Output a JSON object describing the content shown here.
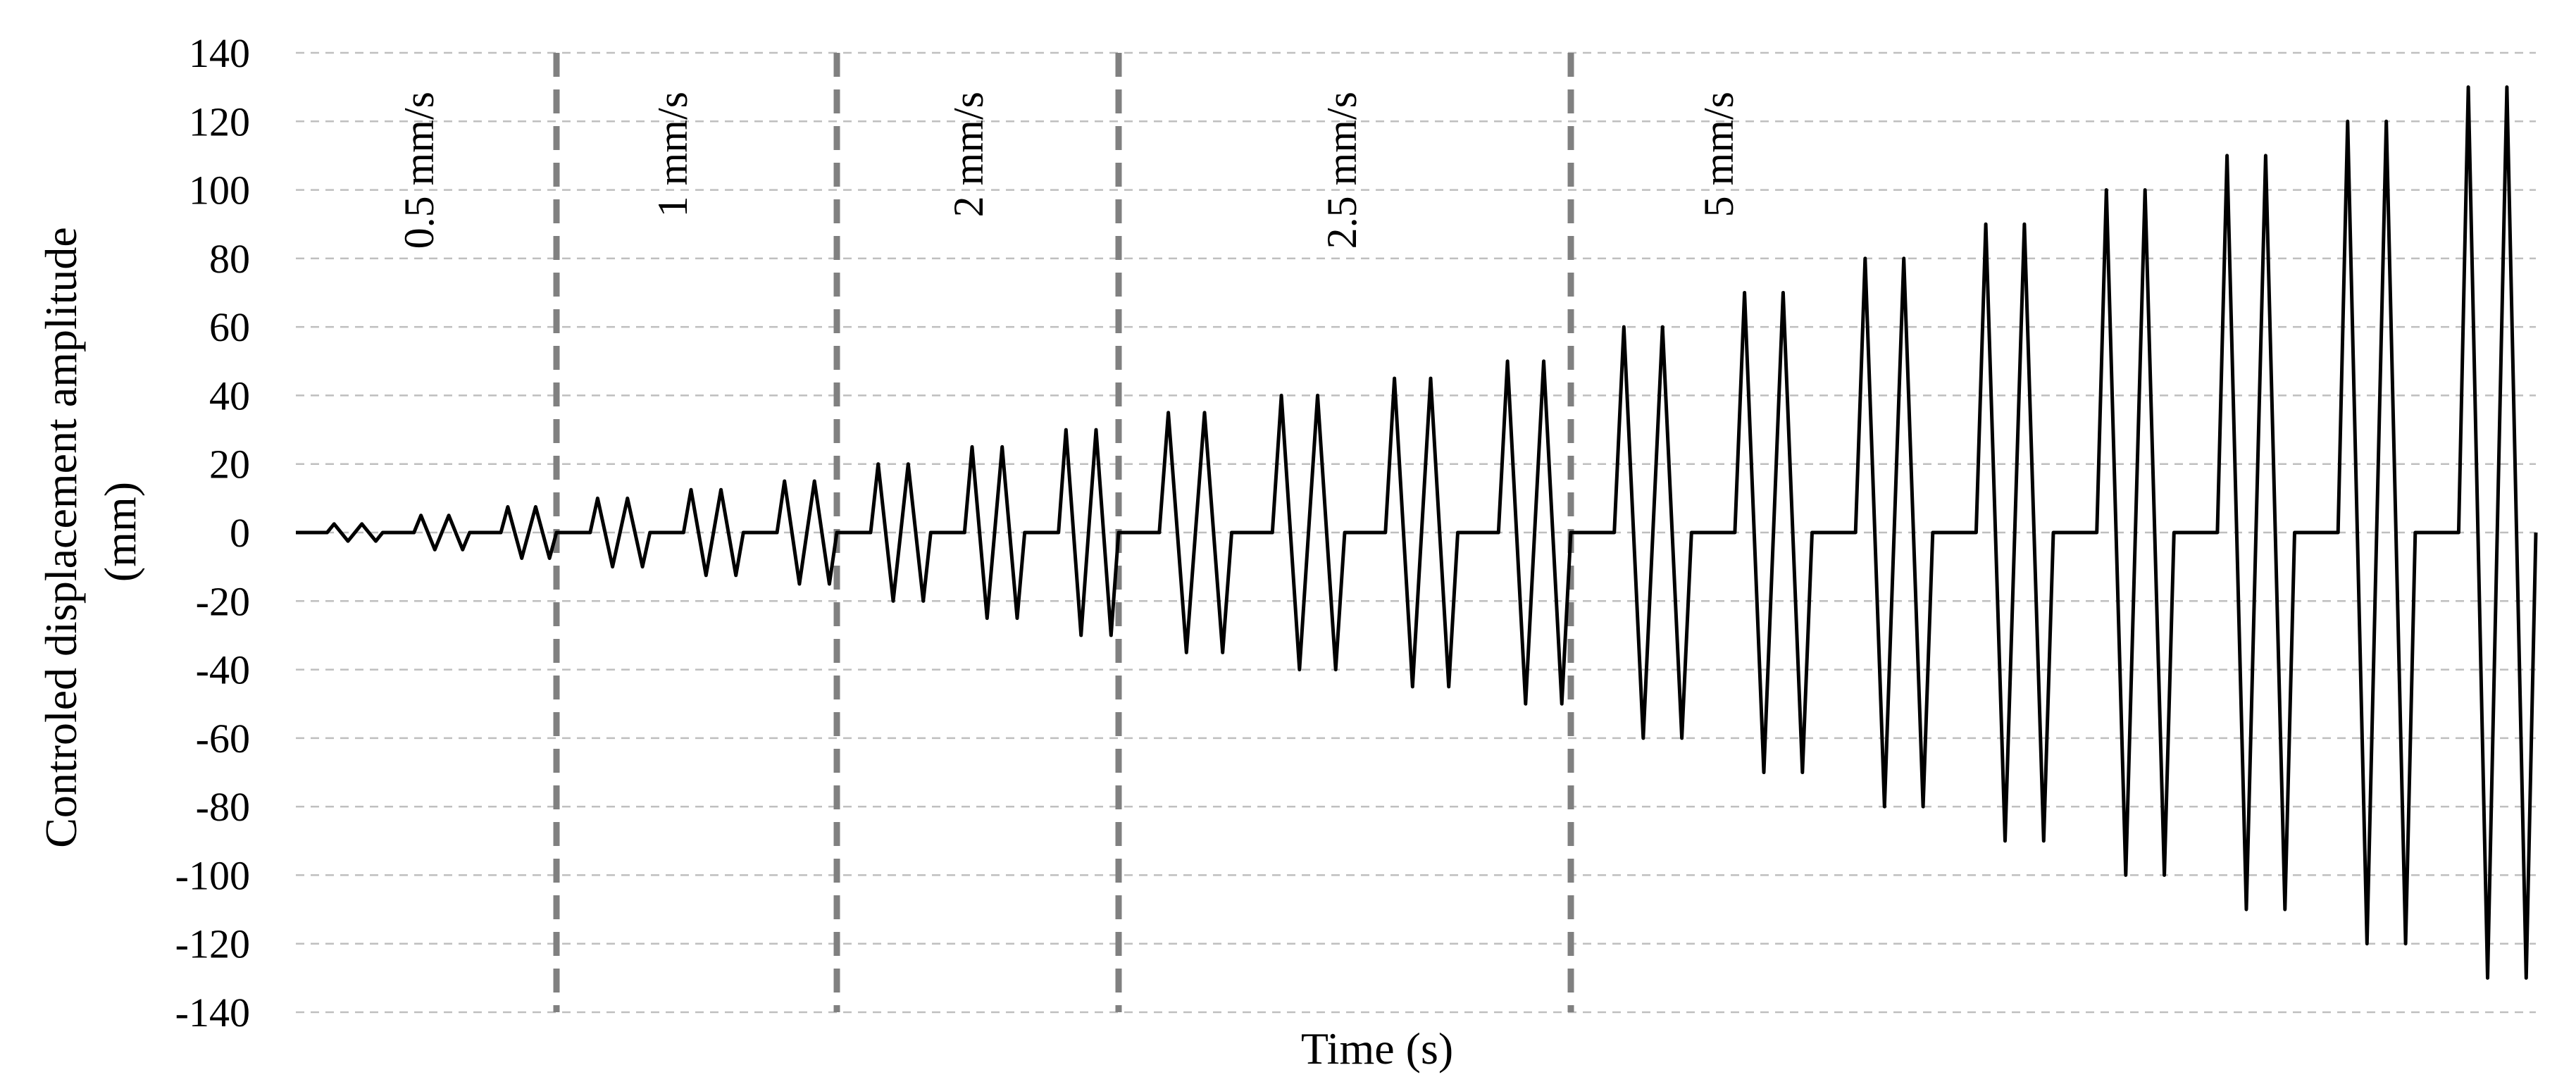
{
  "chart_data": {
    "type": "line",
    "title": "",
    "xlabel": "Time (s)",
    "ylabel": [
      "Controled displacement amplitude",
      "(mm)"
    ],
    "ylim": [
      -140,
      140
    ],
    "yticks": [
      "140",
      "120",
      "100",
      "80",
      "60",
      "40",
      "20",
      "0",
      "-20",
      "-40",
      "-60",
      "-80",
      "-100",
      "-120",
      "-140"
    ],
    "grid": true,
    "legend": "none",
    "colors": {
      "series": "#000000",
      "grid": "#bfbfbf",
      "phase_divider": "#808080"
    },
    "phases": [
      {
        "label": "0.5 mm/s",
        "amplitudes": [
          2.5,
          5,
          7.5
        ]
      },
      {
        "label": "1 mm/s",
        "amplitudes": [
          10,
          12.5,
          15
        ]
      },
      {
        "label": "2 mm/s",
        "amplitudes": [
          20,
          25,
          30
        ]
      },
      {
        "label": "2.5 mm/s",
        "amplitudes": [
          35,
          40,
          45,
          50
        ]
      },
      {
        "label": "5 mm/s",
        "amplitudes": [
          60,
          70,
          80,
          90,
          100,
          110,
          120,
          130
        ]
      }
    ],
    "series": [
      {
        "cycles_per_amplitude": 2
      }
    ]
  }
}
